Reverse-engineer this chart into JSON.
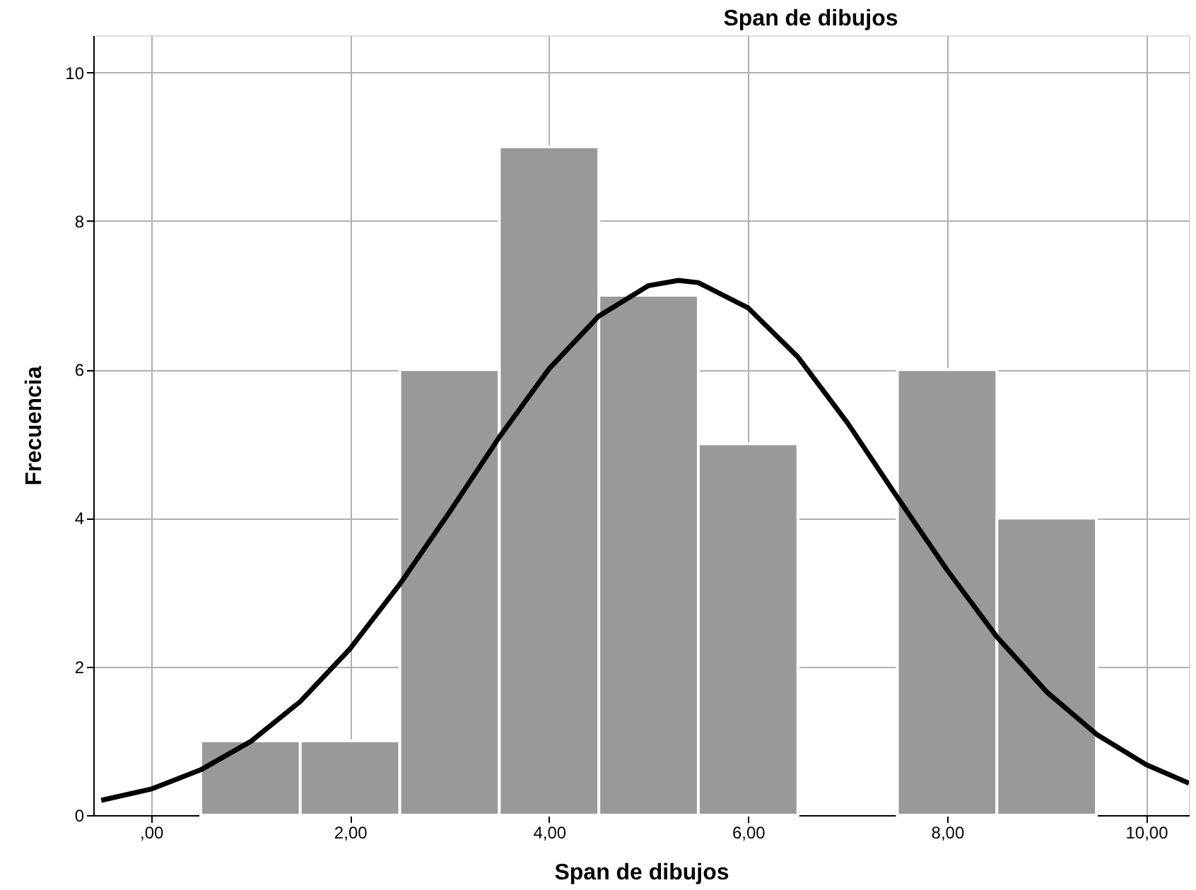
{
  "chart_data": {
    "type": "histogram",
    "title": "Span de dibujos",
    "xlabel": "Span de dibujos",
    "ylabel": "Frecuencia",
    "bins": [
      0.5,
      1.5,
      2.5,
      3.5,
      4.5,
      5.5,
      6.5,
      7.5,
      8.5,
      9.5
    ],
    "series": [
      {
        "color": "#999999",
        "values": [
          1,
          1,
          6,
          9,
          7,
          5,
          0,
          6,
          4
        ]
      },
      {
        "type": "line",
        "color": "#000000",
        "x": [
          -0.5,
          0,
          0.5,
          1,
          1.5,
          2,
          2.5,
          3,
          3.5,
          4,
          4.5,
          5,
          5.3,
          5.5,
          6,
          6.5,
          7,
          7.5,
          8,
          8.5,
          9,
          9.5,
          10,
          10.43
        ],
        "values": [
          0.2,
          0.35,
          0.61,
          0.99,
          1.53,
          2.24,
          3.11,
          4.08,
          5.09,
          6.01,
          6.72,
          7.13,
          7.2,
          7.17,
          6.83,
          6.17,
          5.28,
          4.28,
          3.3,
          2.4,
          1.66,
          1.09,
          0.68,
          0.43
        ]
      }
    ],
    "xlim": [
      -0.58,
      10.43
    ],
    "ylim": [
      0,
      10.5
    ],
    "xticks": [
      {
        "value": 0,
        "label": ",00"
      },
      {
        "value": 2,
        "label": "2,00"
      },
      {
        "value": 4,
        "label": "4,00"
      },
      {
        "value": 6,
        "label": "6,00"
      },
      {
        "value": 8,
        "label": "8,00"
      },
      {
        "value": 10,
        "label": "10,00"
      }
    ],
    "yticks": [
      0,
      2,
      4,
      6,
      8,
      10
    ],
    "grid": true
  }
}
